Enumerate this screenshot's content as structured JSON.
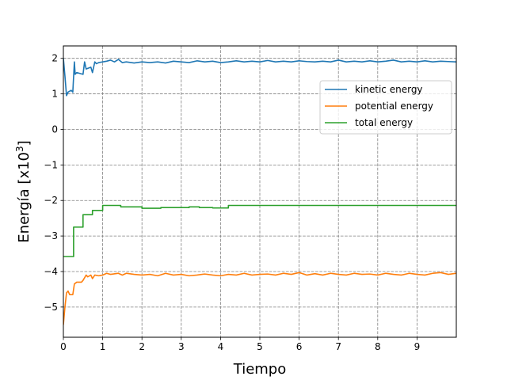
{
  "chart_data": {
    "type": "line",
    "xlabel": "Tiempo",
    "ylabel_base": "Energía [x10",
    "ylabel_exp": "3",
    "ylabel_end": "]",
    "xlim": [
      0,
      10
    ],
    "ylim": [
      -5.85,
      2.35
    ],
    "xticks": [
      0,
      1,
      2,
      3,
      4,
      5,
      6,
      7,
      8,
      9
    ],
    "xtick_labels": [
      "0",
      "1",
      "2",
      "3",
      "4",
      "5",
      "6",
      "7",
      "8",
      "9"
    ],
    "yticks": [
      -5,
      -4,
      -3,
      -2,
      -1,
      0,
      1,
      2
    ],
    "ytick_labels": [
      "−5",
      "−4",
      "−3",
      "−2",
      "−1",
      "0",
      "1",
      "2"
    ],
    "grid": true,
    "legend_position": "upper right",
    "series": [
      {
        "name": "kinetic energy",
        "color": "#1f77b4",
        "x": [
          0,
          0.04,
          0.08,
          0.12,
          0.2,
          0.24,
          0.28,
          0.3,
          0.34,
          0.5,
          0.54,
          0.58,
          0.7,
          0.74,
          0.8,
          0.84,
          0.9,
          1.0,
          1.1,
          1.2,
          1.3,
          1.4,
          1.5,
          1.6,
          1.8,
          2.0,
          2.2,
          2.4,
          2.6,
          2.8,
          3.0,
          3.2,
          3.4,
          3.6,
          3.8,
          4.0,
          4.2,
          4.4,
          4.6,
          4.8,
          5.0,
          5.2,
          5.4,
          5.6,
          5.8,
          6.0,
          6.2,
          6.4,
          6.6,
          6.8,
          7.0,
          7.2,
          7.4,
          7.6,
          7.8,
          8.0,
          8.2,
          8.4,
          8.6,
          8.8,
          9.0,
          9.2,
          9.4,
          9.6,
          9.8,
          10.0
        ],
        "y": [
          2.0,
          1.5,
          0.95,
          1.05,
          1.1,
          1.05,
          1.9,
          1.55,
          1.6,
          1.55,
          1.9,
          1.7,
          1.75,
          1.6,
          1.9,
          1.85,
          1.88,
          1.9,
          1.92,
          1.95,
          1.9,
          1.97,
          1.88,
          1.9,
          1.87,
          1.9,
          1.88,
          1.9,
          1.87,
          1.92,
          1.9,
          1.88,
          1.93,
          1.9,
          1.92,
          1.88,
          1.9,
          1.93,
          1.9,
          1.92,
          1.9,
          1.94,
          1.9,
          1.92,
          1.9,
          1.93,
          1.91,
          1.9,
          1.92,
          1.9,
          1.95,
          1.9,
          1.92,
          1.9,
          1.93,
          1.9,
          1.92,
          1.95,
          1.9,
          1.92,
          1.9,
          1.93,
          1.9,
          1.92,
          1.91,
          1.9
        ]
      },
      {
        "name": "potential energy",
        "color": "#ff7f0e",
        "x": [
          0,
          0.04,
          0.08,
          0.12,
          0.16,
          0.2,
          0.24,
          0.28,
          0.34,
          0.46,
          0.5,
          0.58,
          0.62,
          0.7,
          0.74,
          0.8,
          0.9,
          1.0,
          1.1,
          1.2,
          1.4,
          1.5,
          1.6,
          1.8,
          2.0,
          2.2,
          2.4,
          2.6,
          2.8,
          3.0,
          3.2,
          3.4,
          3.6,
          3.8,
          4.0,
          4.2,
          4.4,
          4.6,
          4.8,
          5.0,
          5.2,
          5.4,
          5.6,
          5.8,
          6.0,
          6.2,
          6.4,
          6.6,
          6.8,
          7.0,
          7.2,
          7.4,
          7.6,
          7.8,
          8.0,
          8.2,
          8.4,
          8.6,
          8.8,
          9.0,
          9.2,
          9.4,
          9.6,
          9.8,
          10.0
        ],
        "y": [
          -5.5,
          -5.0,
          -4.6,
          -4.55,
          -4.65,
          -4.65,
          -4.65,
          -4.35,
          -4.3,
          -4.3,
          -4.25,
          -4.1,
          -4.15,
          -4.1,
          -4.2,
          -4.1,
          -4.12,
          -4.1,
          -4.05,
          -4.08,
          -4.05,
          -4.1,
          -4.05,
          -4.08,
          -4.1,
          -4.08,
          -4.12,
          -4.05,
          -4.1,
          -4.08,
          -4.12,
          -4.1,
          -4.07,
          -4.1,
          -4.12,
          -4.08,
          -4.1,
          -4.05,
          -4.1,
          -4.08,
          -4.07,
          -4.1,
          -4.05,
          -4.08,
          -4.03,
          -4.1,
          -4.06,
          -4.1,
          -4.05,
          -4.08,
          -4.1,
          -4.05,
          -4.08,
          -4.07,
          -4.1,
          -4.05,
          -4.08,
          -4.1,
          -4.05,
          -4.08,
          -4.1,
          -4.05,
          -4.03,
          -4.08,
          -4.05
        ]
      },
      {
        "name": "total energy",
        "color": "#2ca02c",
        "x": [
          0,
          0.26,
          0.26,
          0.5,
          0.5,
          0.74,
          0.74,
          1.0,
          1.0,
          1.46,
          1.46,
          2.0,
          2.0,
          2.48,
          2.48,
          3.2,
          3.2,
          3.46,
          3.46,
          3.8,
          3.8,
          4.2,
          4.2,
          10.0
        ],
        "y": [
          -3.58,
          -3.58,
          -2.75,
          -2.75,
          -2.4,
          -2.4,
          -2.28,
          -2.28,
          -2.14,
          -2.14,
          -2.18,
          -2.18,
          -2.22,
          -2.22,
          -2.2,
          -2.2,
          -2.18,
          -2.18,
          -2.2,
          -2.2,
          -2.21,
          -2.21,
          -2.14,
          -2.14
        ]
      }
    ]
  }
}
